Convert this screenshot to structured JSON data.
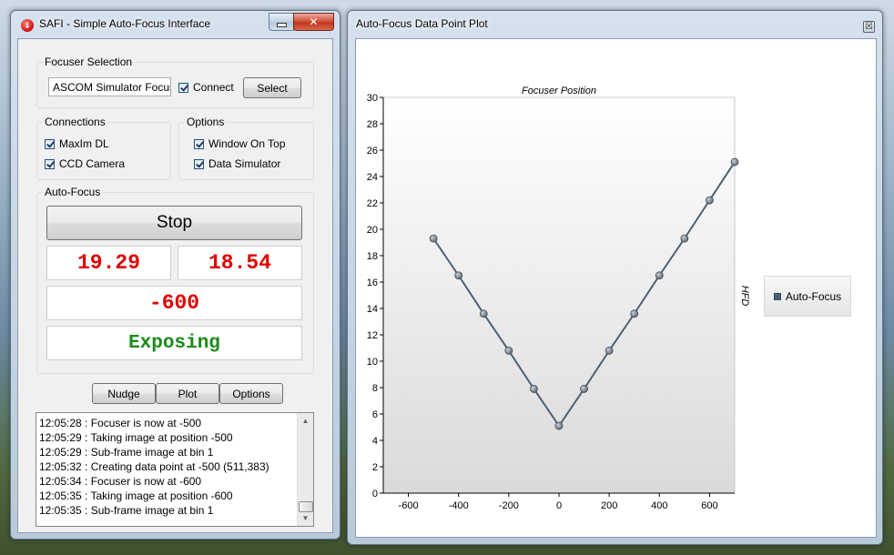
{
  "safi": {
    "title": "SAFI - Simple Auto-Focus Interface",
    "close_label": "✕",
    "focuser_selection": {
      "label": "Focuser Selection",
      "focuser_name": "ASCOM Simulator Focuser",
      "connect_label": "Connect",
      "connect_checked": true,
      "select_label": "Select"
    },
    "connections": {
      "label": "Connections",
      "items": [
        {
          "label": "MaxIm DL",
          "checked": true
        },
        {
          "label": "CCD Camera",
          "checked": true
        }
      ]
    },
    "options_group": {
      "label": "Options",
      "items": [
        {
          "label": "Window On Top",
          "checked": true
        },
        {
          "label": "Data Simulator",
          "checked": true
        }
      ]
    },
    "autofocus": {
      "label": "Auto-Focus",
      "stop_label": "Stop",
      "readout_left": "19.29",
      "readout_right": "18.54",
      "position": "-600",
      "status": "Exposing",
      "readout_color": "#e00000",
      "status_color": "#1a8a1a"
    },
    "buttons": {
      "nudge": "Nudge",
      "plot": "Plot",
      "options": "Options"
    },
    "log": [
      "12:05:28 : Focuser is now at -500",
      "12:05:29 : Taking image at position -500",
      "12:05:29 : Sub-frame image at bin 1",
      "12:05:32 : Creating data point at -500 (511,383)",
      "12:05:34 : Focuser is now at -600",
      "12:05:35 : Taking image at position -600",
      "12:05:35 : Sub-frame image at bin 1"
    ]
  },
  "plot_window": {
    "title": "Auto-Focus Data Point Plot",
    "close_label": "☒"
  },
  "chart_data": {
    "type": "line",
    "title": "Focuser Position",
    "xlabel": "",
    "ylabel": "HFD",
    "xlim": [
      -700,
      700
    ],
    "ylim": [
      0,
      30
    ],
    "x_ticks": [
      -600,
      -400,
      -200,
      0,
      200,
      400,
      600
    ],
    "y_ticks": [
      0,
      2,
      4,
      6,
      8,
      10,
      12,
      14,
      16,
      18,
      20,
      22,
      24,
      26,
      28,
      30
    ],
    "legend_position": "right",
    "series": [
      {
        "name": "Auto-Focus",
        "color": "#4d6073",
        "x": [
          -500,
          -400,
          -300,
          -200,
          -100,
          0,
          100,
          200,
          300,
          400,
          500,
          600,
          700
        ],
        "y": [
          19.3,
          16.5,
          13.6,
          10.8,
          7.9,
          5.1,
          7.9,
          10.8,
          13.6,
          16.5,
          19.3,
          22.2,
          25.1
        ]
      }
    ]
  }
}
